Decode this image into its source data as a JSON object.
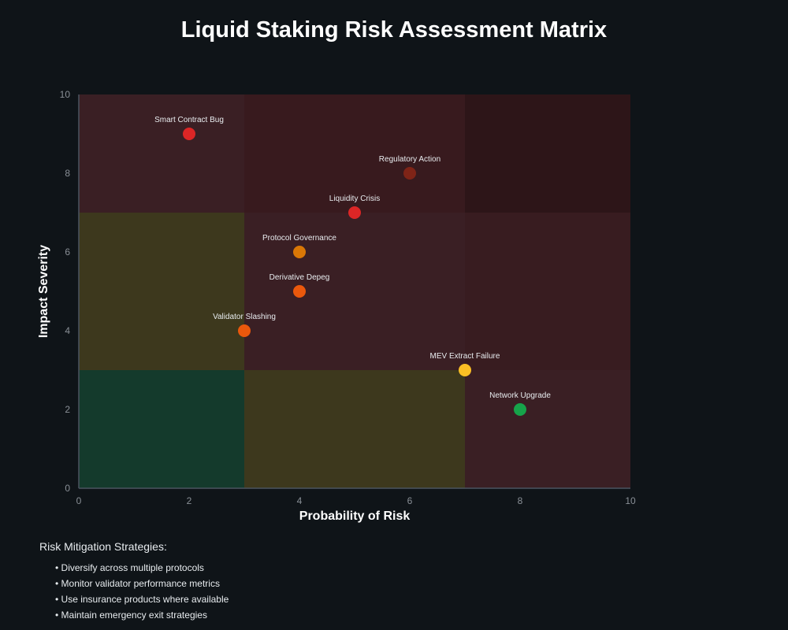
{
  "chart_data": {
    "type": "scatter",
    "title": "Liquid Staking Risk Assessment Matrix",
    "xlabel": "Probability of Risk",
    "ylabel": "Impact Severity",
    "xlim": [
      0,
      10
    ],
    "ylim": [
      0,
      10
    ],
    "xticks": [
      0,
      2,
      4,
      6,
      8,
      10
    ],
    "yticks": [
      0,
      2,
      4,
      6,
      8,
      10
    ],
    "grid": false,
    "zones": [
      {
        "x": [
          0,
          3
        ],
        "y": [
          0,
          3
        ],
        "level": "low",
        "color": "#143a2c"
      },
      {
        "x": [
          3,
          7
        ],
        "y": [
          0,
          3
        ],
        "level": "medium",
        "color": "#3d381d"
      },
      {
        "x": [
          7,
          10
        ],
        "y": [
          0,
          3
        ],
        "level": "high",
        "color": "#3a1f24"
      },
      {
        "x": [
          0,
          3
        ],
        "y": [
          3,
          7
        ],
        "level": "medium",
        "color": "#3d381d"
      },
      {
        "x": [
          3,
          7
        ],
        "y": [
          3,
          7
        ],
        "level": "high",
        "color": "#3a1f24"
      },
      {
        "x": [
          7,
          10
        ],
        "y": [
          3,
          7
        ],
        "level": "critical",
        "color": "#381c20"
      },
      {
        "x": [
          0,
          3
        ],
        "y": [
          7,
          10
        ],
        "level": "high",
        "color": "#3a1f24"
      },
      {
        "x": [
          3,
          7
        ],
        "y": [
          7,
          10
        ],
        "level": "critical",
        "color": "#381a1e"
      },
      {
        "x": [
          7,
          10
        ],
        "y": [
          7,
          10
        ],
        "level": "extreme",
        "color": "#2d1518"
      }
    ],
    "points": [
      {
        "label": "Smart Contract Bug",
        "x": 2,
        "y": 9,
        "color": "#dc2626"
      },
      {
        "label": "Regulatory Action",
        "x": 6,
        "y": 8,
        "color": "#7f2417"
      },
      {
        "label": "Liquidity Crisis",
        "x": 5,
        "y": 7,
        "color": "#dc2626"
      },
      {
        "label": "Protocol Governance",
        "x": 4,
        "y": 6,
        "color": "#d97706"
      },
      {
        "label": "Derivative Depeg",
        "x": 4,
        "y": 5,
        "color": "#ea580c"
      },
      {
        "label": "Validator Slashing",
        "x": 3,
        "y": 4,
        "color": "#ea580c"
      },
      {
        "label": "MEV Extract Failure",
        "x": 7,
        "y": 3,
        "color": "#fbbf24"
      },
      {
        "label": "Network Upgrade",
        "x": 8,
        "y": 2,
        "color": "#16a34a"
      }
    ]
  },
  "strategies": {
    "heading": "Risk Mitigation Strategies:",
    "items": [
      "• Diversify across multiple protocols",
      "• Monitor validator performance metrics",
      "• Use insurance products where available",
      "• Maintain emergency exit strategies"
    ]
  }
}
